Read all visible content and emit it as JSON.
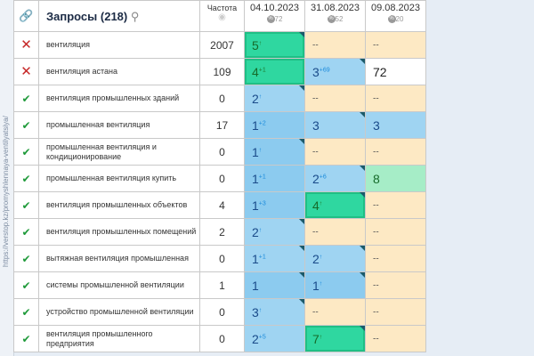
{
  "sidebar_url": "https://verstop.kz/promyshlennaya-ventilyatsiya/",
  "header": {
    "title": "Запросы (218)",
    "freq": "Частота",
    "dates": [
      {
        "date": "04.10.2023",
        "pct": "72"
      },
      {
        "date": "31.08.2023",
        "pct": "52"
      },
      {
        "date": "09.08.2023",
        "pct": "20"
      }
    ]
  },
  "rows": [
    {
      "status": "x",
      "q": "вентиляция",
      "f": "2007",
      "c": [
        [
          "5",
          "↑",
          "green",
          1
        ],
        [
          "--",
          "",
          "cream",
          0
        ],
        [
          "--",
          "",
          "cream",
          0
        ]
      ]
    },
    {
      "status": "x",
      "q": "вентиляция астана",
      "f": "109",
      "c": [
        [
          "4",
          "+1",
          "green",
          0
        ],
        [
          "3",
          "+69",
          "blue",
          1
        ],
        [
          "72",
          "",
          "white",
          0
        ]
      ]
    },
    {
      "status": "ok",
      "q": "вентиляция промышленных зданий",
      "f": "0",
      "c": [
        [
          "2",
          "↑",
          "blue",
          1
        ],
        [
          "--",
          "",
          "cream",
          0
        ],
        [
          "--",
          "",
          "cream",
          0
        ]
      ]
    },
    {
      "status": "ok",
      "q": "промышленная вентиляция",
      "f": "17",
      "c": [
        [
          "1",
          "+2",
          "blue2",
          0
        ],
        [
          "3",
          "",
          "blue",
          1
        ],
        [
          "3",
          "",
          "blue",
          0
        ]
      ]
    },
    {
      "status": "ok",
      "q": "промышленная вентиляция и кондиционирование",
      "f": "0",
      "c": [
        [
          "1",
          "↑",
          "blue2",
          1
        ],
        [
          "--",
          "",
          "cream",
          0
        ],
        [
          "--",
          "",
          "cream",
          0
        ]
      ]
    },
    {
      "status": "ok",
      "q": "промышленная вентиляция купить",
      "f": "0",
      "c": [
        [
          "1",
          "+1",
          "blue2",
          0
        ],
        [
          "2",
          "+6",
          "blue",
          1
        ],
        [
          "8",
          "",
          "mint",
          0
        ]
      ]
    },
    {
      "status": "ok",
      "q": "вентиляция промышленных объектов",
      "f": "4",
      "c": [
        [
          "1",
          "+3",
          "blue2",
          0
        ],
        [
          "4",
          "↑",
          "green",
          1
        ],
        [
          "--",
          "",
          "cream",
          0
        ]
      ]
    },
    {
      "status": "ok",
      "q": "вентиляция промышленных помещений",
      "f": "2",
      "c": [
        [
          "2",
          "↑",
          "blue",
          1
        ],
        [
          "--",
          "",
          "cream",
          0
        ],
        [
          "--",
          "",
          "cream",
          0
        ]
      ]
    },
    {
      "status": "ok",
      "q": "вытяжная вентиляция промышленная",
      "f": "0",
      "c": [
        [
          "1",
          "+1",
          "blue",
          1
        ],
        [
          "2",
          "↑",
          "blue",
          1
        ],
        [
          "--",
          "",
          "cream",
          0
        ]
      ]
    },
    {
      "status": "ok",
      "q": "системы промышленной вентиляции",
      "f": "1",
      "c": [
        [
          "1",
          "",
          "blue2",
          1
        ],
        [
          "1",
          "↑",
          "blue2",
          1
        ],
        [
          "--",
          "",
          "cream",
          0
        ]
      ]
    },
    {
      "status": "ok",
      "q": "устройство промышленной вентиляции",
      "f": "0",
      "c": [
        [
          "3",
          "↑",
          "blue",
          1
        ],
        [
          "--",
          "",
          "cream",
          0
        ],
        [
          "--",
          "",
          "cream",
          0
        ]
      ]
    },
    {
      "status": "ok",
      "q": "вентиляция промышленного предприятия",
      "f": "0",
      "c": [
        [
          "2",
          "+5",
          "blue",
          0
        ],
        [
          "7",
          "↑",
          "green",
          1
        ],
        [
          "--",
          "",
          "cream",
          0
        ]
      ]
    }
  ]
}
